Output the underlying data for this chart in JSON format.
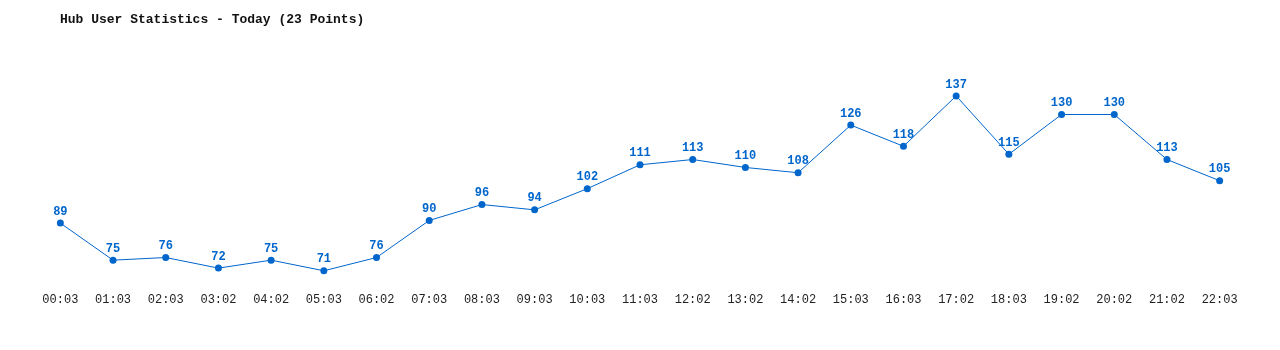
{
  "chart_data": {
    "type": "line",
    "title": "Hub User Statistics - Today (23 Points)",
    "categories": [
      "00:03",
      "01:03",
      "02:03",
      "03:02",
      "04:02",
      "05:03",
      "06:02",
      "07:03",
      "08:03",
      "09:03",
      "10:03",
      "11:03",
      "12:02",
      "13:02",
      "14:02",
      "15:03",
      "16:03",
      "17:02",
      "18:03",
      "19:02",
      "20:02",
      "21:02",
      "22:03"
    ],
    "series": [
      {
        "color": "#0066cc",
        "values": [
          89,
          75,
          76,
          72,
          75,
          71,
          76,
          90,
          96,
          94,
          102,
          111,
          113,
          110,
          108,
          126,
          118,
          137,
          115,
          130,
          130,
          113,
          105
        ]
      }
    ],
    "data_labels": true,
    "marker": "circle",
    "line_style": "solid",
    "tick_labels": "x"
  }
}
